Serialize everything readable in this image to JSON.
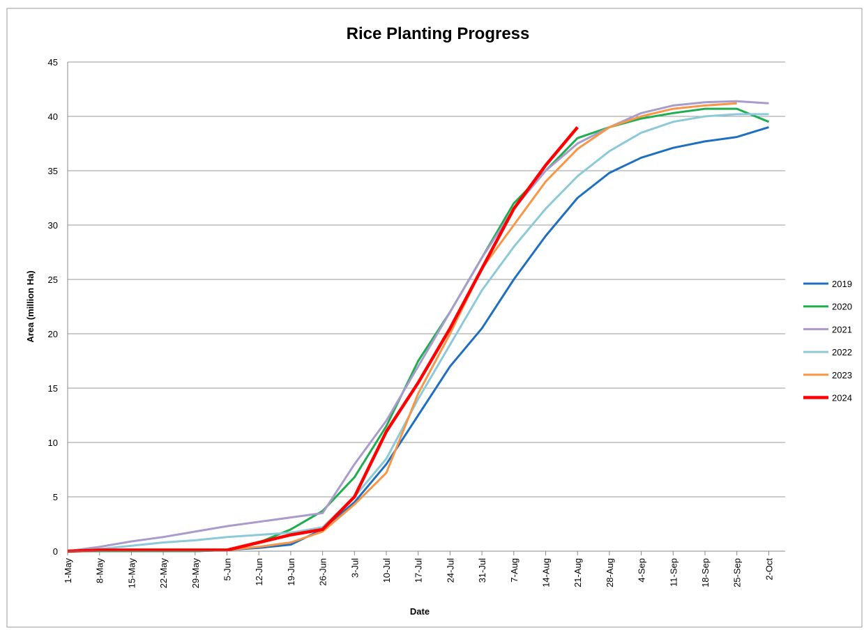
{
  "chart_data": {
    "type": "line",
    "title": "Rice Planting Progress",
    "x_label": "Date",
    "y_label": "Area (million Ha)",
    "categories": [
      "1-May",
      "8-May",
      "15-May",
      "22-May",
      "29-May",
      "5-Jun",
      "12-Jun",
      "19-Jun",
      "26-Jun",
      "3-Jul",
      "10-Jul",
      "17-Jul",
      "24-Jul",
      "31-Jul",
      "7-Aug",
      "14-Aug",
      "21-Aug",
      "28-Aug",
      "4-Sep",
      "11-Sep",
      "18-Sep",
      "25-Sep",
      "2-Oct"
    ],
    "series": [
      {
        "name": "2019",
        "color": "#1f6fc0",
        "values": [
          0,
          0,
          0,
          0,
          0,
          0.1,
          0.3,
          0.6,
          2.0,
          4.5,
          8,
          12.5,
          17,
          20.5,
          25,
          29,
          32.5,
          34.8,
          36.2,
          37.1,
          37.7,
          38.1,
          39.0
        ]
      },
      {
        "name": "2020",
        "color": "#1fae4f",
        "values": [
          0,
          0,
          0,
          0,
          0,
          0.1,
          0.8,
          2.0,
          3.7,
          6.8,
          11.5,
          17.5,
          22,
          27,
          32,
          35,
          38,
          39,
          39.8,
          40.3,
          40.7,
          40.7,
          39.5
        ]
      },
      {
        "name": "2021",
        "color": "#a99bcb",
        "values": [
          0,
          0.4,
          0.9,
          1.3,
          1.8,
          2.3,
          2.7,
          3.1,
          3.5,
          8,
          12,
          17,
          22,
          27,
          31.5,
          35,
          37.5,
          39,
          40.3,
          41,
          41.3,
          41.4,
          41.2
        ]
      },
      {
        "name": "2022",
        "color": "#8cc9d9",
        "values": [
          0,
          0.2,
          0.5,
          0.8,
          1.0,
          1.3,
          1.5,
          1.7,
          2.2,
          5,
          8.5,
          14,
          19,
          24,
          28,
          31.5,
          34.5,
          36.8,
          38.5,
          39.5,
          40,
          40.2,
          40.2
        ]
      },
      {
        "name": "2023",
        "color": "#f79646",
        "values": [
          0,
          0.1,
          0.1,
          0.1,
          0.1,
          0.1,
          0.4,
          0.8,
          1.8,
          4.3,
          7.2,
          14.5,
          20,
          26,
          30,
          34,
          37,
          39,
          40,
          40.7,
          41,
          41.2,
          null
        ]
      },
      {
        "name": "2024",
        "color": "#ff0000",
        "values": [
          0,
          0.1,
          0.1,
          0.1,
          0.1,
          0.1,
          0.8,
          1.5,
          2.0,
          5,
          11,
          15.5,
          20.5,
          26,
          31.5,
          35.5,
          39,
          null,
          null,
          null,
          null,
          null,
          null
        ]
      }
    ],
    "ylim": [
      0,
      45
    ],
    "yticks": [
      0,
      5,
      10,
      15,
      20,
      25,
      30,
      35,
      40,
      45
    ],
    "grid": true,
    "legend": "right"
  }
}
